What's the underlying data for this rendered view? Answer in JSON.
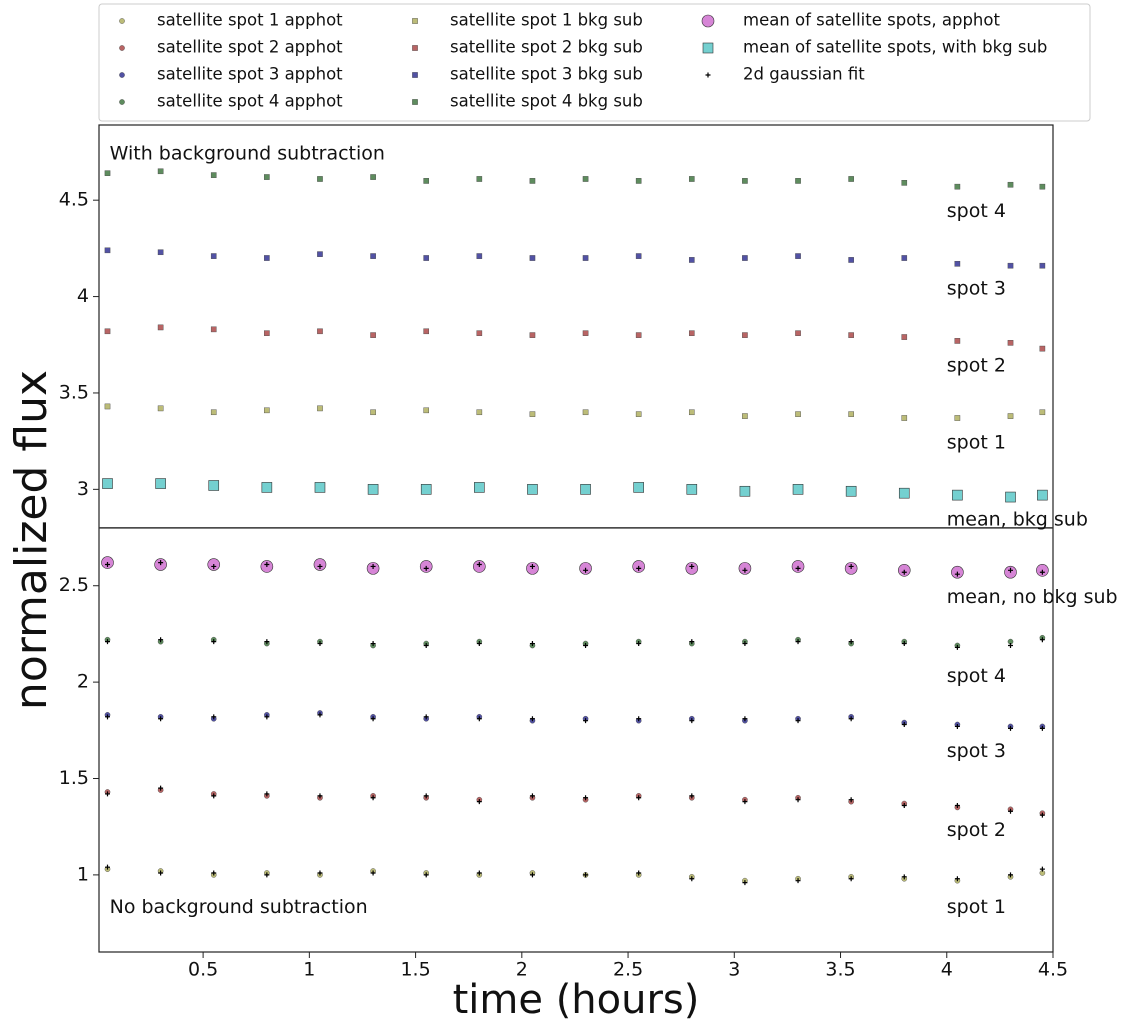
{
  "chart_data": {
    "type": "scatter",
    "x_label": "time (hours)",
    "y_label": "normalized flux",
    "xlim": [
      0.01,
      4.5
    ],
    "ylim": [
      0.6,
      4.89
    ],
    "xticks": [
      0.5,
      1.0,
      1.5,
      2.0,
      2.5,
      3.0,
      3.5,
      4.0,
      4.5
    ],
    "yticks": [
      1.0,
      1.5,
      2.0,
      2.5,
      3.0,
      3.5,
      4.0,
      4.5
    ],
    "hline": 2.8,
    "x": [
      0.05,
      0.3,
      0.55,
      0.8,
      1.05,
      1.3,
      1.55,
      1.8,
      2.05,
      2.3,
      2.55,
      2.8,
      3.05,
      3.3,
      3.55,
      3.8,
      4.05,
      4.3,
      4.45
    ],
    "series": [
      {
        "name": "satellite spot 1 apphot",
        "color": "#bcbc78",
        "marker": "point",
        "values": [
          1.03,
          1.02,
          1.0,
          1.01,
          1.0,
          1.02,
          1.01,
          1.0,
          1.01,
          1.0,
          1.0,
          0.99,
          0.97,
          0.98,
          0.99,
          0.98,
          0.97,
          0.99,
          1.01
        ]
      },
      {
        "name": "satellite spot 2 apphot",
        "color": "#b86464",
        "marker": "point",
        "values": [
          1.43,
          1.44,
          1.42,
          1.41,
          1.4,
          1.41,
          1.4,
          1.39,
          1.4,
          1.39,
          1.41,
          1.4,
          1.39,
          1.4,
          1.38,
          1.37,
          1.35,
          1.34,
          1.32
        ]
      },
      {
        "name": "satellite spot 3 apphot",
        "color": "#5252a4",
        "marker": "point",
        "values": [
          1.83,
          1.82,
          1.81,
          1.83,
          1.84,
          1.82,
          1.81,
          1.82,
          1.8,
          1.81,
          1.8,
          1.81,
          1.8,
          1.81,
          1.82,
          1.79,
          1.78,
          1.77,
          1.77
        ]
      },
      {
        "name": "satellite spot 4 apphot",
        "color": "#5e8c5e",
        "marker": "point",
        "values": [
          2.22,
          2.21,
          2.22,
          2.2,
          2.21,
          2.19,
          2.2,
          2.21,
          2.19,
          2.2,
          2.21,
          2.2,
          2.21,
          2.22,
          2.2,
          2.21,
          2.19,
          2.21,
          2.23
        ]
      },
      {
        "name": "satellite spot 1 bkg sub",
        "color": "#bcbc78",
        "marker": "square",
        "values": [
          3.43,
          3.42,
          3.4,
          3.41,
          3.42,
          3.4,
          3.41,
          3.4,
          3.39,
          3.4,
          3.39,
          3.4,
          3.38,
          3.39,
          3.39,
          3.37,
          3.37,
          3.38,
          3.4
        ]
      },
      {
        "name": "satellite spot 2 bkg sub",
        "color": "#b86464",
        "marker": "square",
        "values": [
          3.82,
          3.84,
          3.83,
          3.81,
          3.82,
          3.8,
          3.82,
          3.81,
          3.8,
          3.81,
          3.8,
          3.81,
          3.8,
          3.81,
          3.8,
          3.79,
          3.77,
          3.76,
          3.73
        ]
      },
      {
        "name": "satellite spot 3 bkg sub",
        "color": "#5252a4",
        "marker": "square",
        "values": [
          4.24,
          4.23,
          4.21,
          4.2,
          4.22,
          4.21,
          4.2,
          4.21,
          4.2,
          4.2,
          4.21,
          4.19,
          4.2,
          4.21,
          4.19,
          4.2,
          4.17,
          4.16,
          4.16
        ]
      },
      {
        "name": "satellite spot 4 bkg sub",
        "color": "#5e8c5e",
        "marker": "square",
        "values": [
          4.64,
          4.65,
          4.63,
          4.62,
          4.61,
          4.62,
          4.6,
          4.61,
          4.6,
          4.61,
          4.6,
          4.61,
          4.6,
          4.6,
          4.61,
          4.59,
          4.57,
          4.58,
          4.57
        ]
      },
      {
        "name": "mean of satellite spots, apphot",
        "color": "#cc66cc",
        "marker": "circle",
        "values": [
          2.62,
          2.61,
          2.61,
          2.6,
          2.61,
          2.59,
          2.6,
          2.6,
          2.59,
          2.59,
          2.6,
          2.59,
          2.59,
          2.6,
          2.59,
          2.58,
          2.57,
          2.57,
          2.58
        ]
      },
      {
        "name": "mean of satellite spots, with bkg sub",
        "color": "#5cc8c8",
        "marker": "big-square",
        "values": [
          3.03,
          3.03,
          3.02,
          3.01,
          3.01,
          3.0,
          3.0,
          3.01,
          3.0,
          3.0,
          3.01,
          3.0,
          2.99,
          3.0,
          2.99,
          2.98,
          2.97,
          2.96,
          2.97
        ]
      },
      {
        "name": "2d gaussian fit",
        "color": "#000000",
        "marker": "plus",
        "values": [
          [
            1.04,
            1.01,
            1.01,
            1.0,
            1.01,
            1.01,
            1.0,
            1.01,
            1.0,
            1.0,
            1.01,
            0.98,
            0.96,
            0.97,
            0.98,
            0.99,
            0.98,
            1.0,
            1.03
          ],
          [
            1.42,
            1.45,
            1.41,
            1.42,
            1.41,
            1.4,
            1.41,
            1.38,
            1.41,
            1.4,
            1.4,
            1.41,
            1.38,
            1.39,
            1.39,
            1.36,
            1.36,
            1.33,
            1.31
          ],
          [
            1.82,
            1.81,
            1.82,
            1.82,
            1.83,
            1.81,
            1.82,
            1.81,
            1.81,
            1.8,
            1.81,
            1.8,
            1.81,
            1.8,
            1.81,
            1.78,
            1.77,
            1.76,
            1.76
          ],
          [
            2.21,
            2.22,
            2.21,
            2.21,
            2.2,
            2.2,
            2.19,
            2.2,
            2.2,
            2.19,
            2.2,
            2.21,
            2.2,
            2.21,
            2.21,
            2.2,
            2.18,
            2.19,
            2.22
          ],
          [
            2.61,
            2.62,
            2.6,
            2.61,
            2.6,
            2.6,
            2.59,
            2.61,
            2.6,
            2.58,
            2.59,
            2.6,
            2.58,
            2.59,
            2.6,
            2.57,
            2.56,
            2.58,
            2.57
          ]
        ]
      }
    ],
    "annotations": [
      {
        "text": "With background subtraction",
        "x": 0.06,
        "y": 4.74
      },
      {
        "text": "spot 4",
        "x": 4.0,
        "y": 4.44
      },
      {
        "text": "spot 3",
        "x": 4.0,
        "y": 4.04
      },
      {
        "text": "spot 2",
        "x": 4.0,
        "y": 3.64
      },
      {
        "text": "spot 1",
        "x": 4.0,
        "y": 3.24
      },
      {
        "text": "mean, bkg sub",
        "x": 4.0,
        "y": 2.84
      },
      {
        "text": "mean, no bkg sub",
        "x": 4.0,
        "y": 2.44
      },
      {
        "text": "spot 4",
        "x": 4.0,
        "y": 2.03
      },
      {
        "text": "spot 3",
        "x": 4.0,
        "y": 1.64
      },
      {
        "text": "spot 2",
        "x": 4.0,
        "y": 1.23
      },
      {
        "text": "spot 1",
        "x": 4.0,
        "y": 0.83
      },
      {
        "text": "No background subtraction",
        "x": 0.06,
        "y": 0.83
      }
    ]
  }
}
